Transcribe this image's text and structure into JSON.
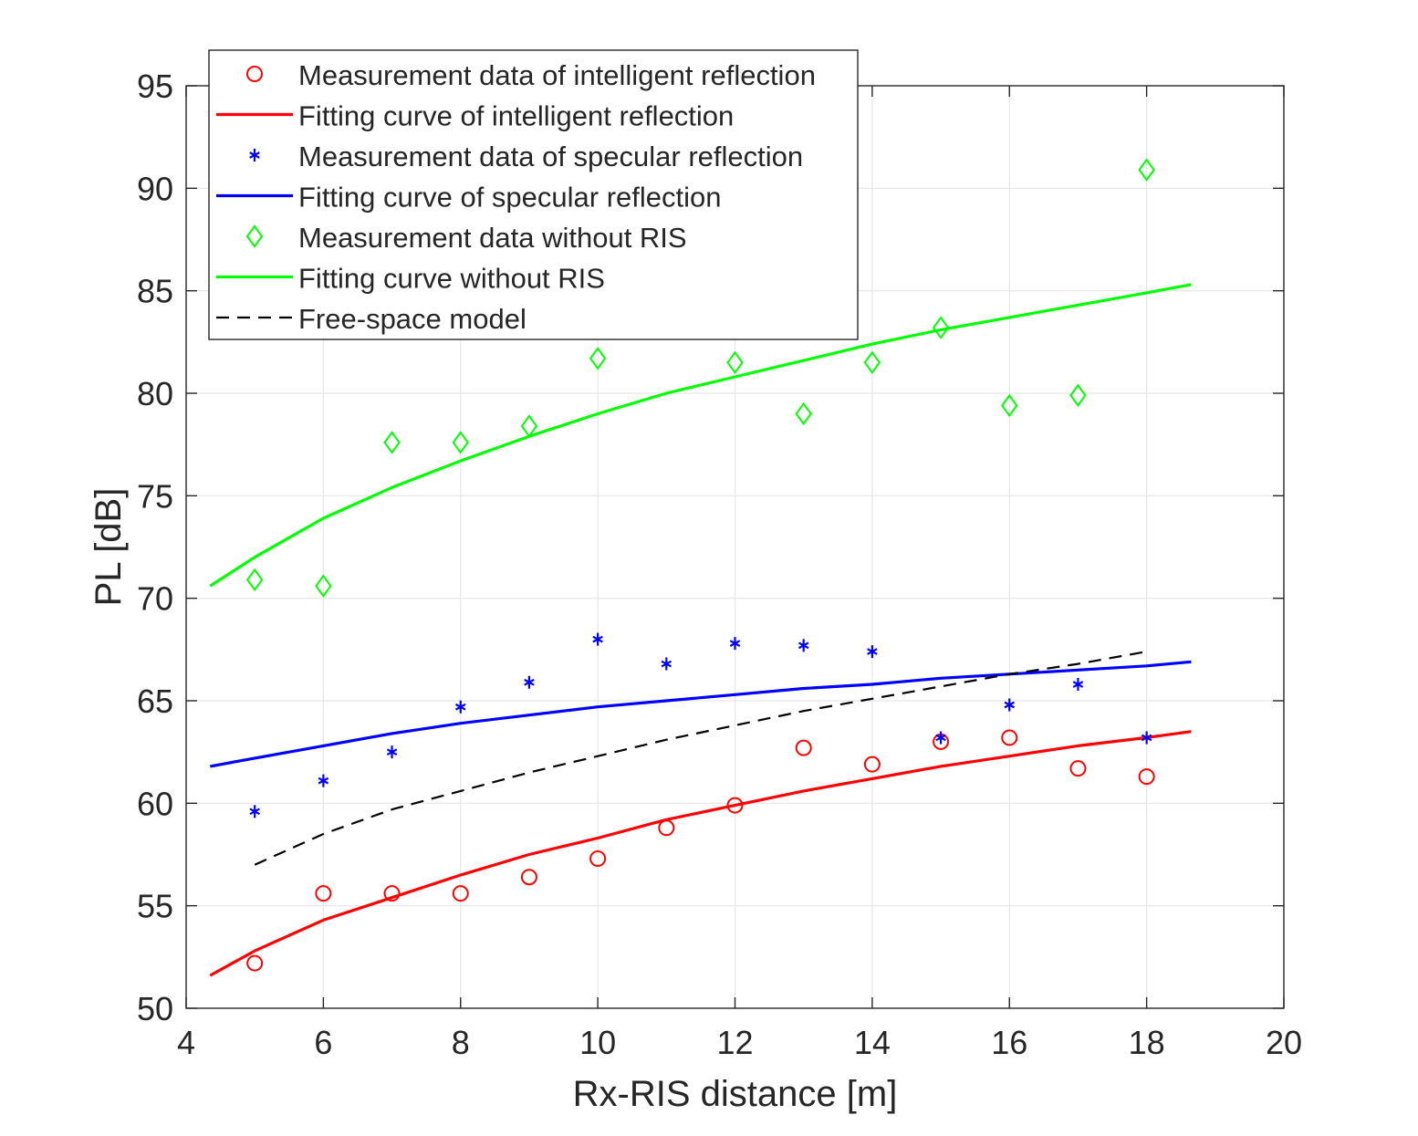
{
  "chart_data": {
    "type": "scatter",
    "title": "",
    "xlabel": "Rx-RIS distance [m]",
    "ylabel": "PL [dB]",
    "xlim": [
      4,
      20
    ],
    "ylim": [
      50,
      95
    ],
    "xticks": [
      4,
      6,
      8,
      10,
      12,
      14,
      16,
      18,
      20
    ],
    "yticks": [
      50,
      55,
      60,
      65,
      70,
      75,
      80,
      85,
      90,
      95
    ],
    "grid": true,
    "legend_position": "top-left",
    "series": [
      {
        "name": "Measurement data of intelligent reflection",
        "kind": "marker",
        "marker": "circle",
        "color": "#ff0000",
        "x": [
          5,
          6,
          7,
          8,
          9,
          10,
          11,
          12,
          13,
          14,
          15,
          16,
          17,
          18
        ],
        "y": [
          52.2,
          55.6,
          55.6,
          55.6,
          56.4,
          57.3,
          58.8,
          59.9,
          62.7,
          61.9,
          63.0,
          63.2,
          61.7,
          61.3
        ]
      },
      {
        "name": "Fitting curve of intelligent reflection",
        "kind": "line",
        "color": "#ff0000",
        "x": [
          4.35,
          5,
          6,
          7,
          8,
          9,
          10,
          11,
          12,
          13,
          14,
          15,
          16,
          17,
          18,
          18.65
        ],
        "y": [
          51.6,
          52.8,
          54.3,
          55.4,
          56.5,
          57.5,
          58.3,
          59.2,
          59.9,
          60.6,
          61.2,
          61.8,
          62.3,
          62.8,
          63.2,
          63.5
        ]
      },
      {
        "name": "Measurement data of specular reflection",
        "kind": "marker",
        "marker": "asterisk",
        "color": "#0000ff",
        "x": [
          5,
          6,
          7,
          8,
          9,
          10,
          11,
          12,
          13,
          14,
          15,
          16,
          17,
          18
        ],
        "y": [
          59.6,
          61.1,
          62.5,
          64.7,
          65.9,
          68.0,
          66.8,
          67.8,
          67.7,
          67.4,
          63.2,
          64.8,
          65.8,
          63.2
        ]
      },
      {
        "name": "Fitting curve of specular reflection",
        "kind": "line",
        "color": "#0000ff",
        "x": [
          4.35,
          5,
          6,
          7,
          8,
          9,
          10,
          11,
          12,
          13,
          14,
          15,
          16,
          17,
          18,
          18.65
        ],
        "y": [
          61.8,
          62.2,
          62.8,
          63.4,
          63.9,
          64.3,
          64.7,
          65.0,
          65.3,
          65.6,
          65.8,
          66.1,
          66.3,
          66.5,
          66.7,
          66.9
        ]
      },
      {
        "name": "Measurement data without RIS",
        "kind": "marker",
        "marker": "diamond",
        "color": "#00ff00",
        "x": [
          5,
          6,
          7,
          8,
          9,
          10,
          12,
          13,
          14,
          15,
          16,
          17,
          18
        ],
        "y": [
          70.9,
          70.6,
          77.6,
          77.6,
          78.4,
          81.7,
          81.5,
          79.0,
          81.5,
          83.2,
          79.4,
          79.9,
          90.9
        ]
      },
      {
        "name": "Fitting curve without RIS",
        "kind": "line",
        "color": "#00ff00",
        "x": [
          4.35,
          5,
          6,
          7,
          8,
          9,
          10,
          11,
          12,
          13,
          14,
          15,
          16,
          17,
          18,
          18.65
        ],
        "y": [
          70.6,
          72.0,
          73.9,
          75.4,
          76.7,
          77.9,
          79.0,
          80.0,
          80.8,
          81.6,
          82.4,
          83.1,
          83.7,
          84.3,
          84.9,
          85.3
        ]
      },
      {
        "name": "Free-space model",
        "kind": "dashed",
        "color": "#000000",
        "x": [
          5,
          6,
          7,
          8,
          9,
          10,
          11,
          12,
          13,
          14,
          15,
          16,
          17,
          18
        ],
        "y": [
          57.0,
          58.5,
          59.7,
          60.6,
          61.5,
          62.3,
          63.1,
          63.8,
          64.5,
          65.1,
          65.7,
          66.3,
          66.8,
          67.4
        ]
      }
    ]
  }
}
